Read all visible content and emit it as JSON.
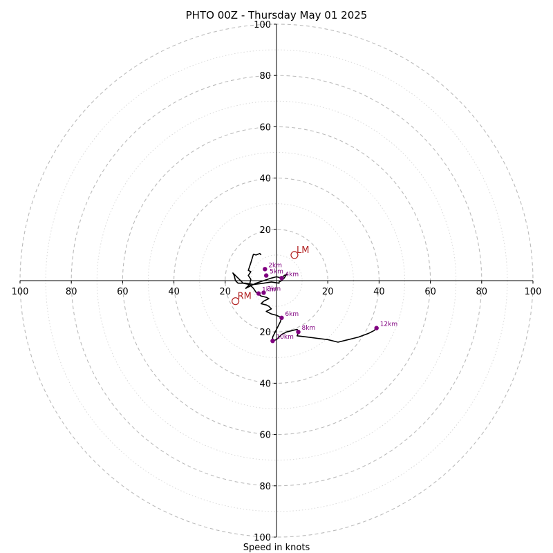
{
  "chart_data": {
    "type": "hodograph",
    "title": "PHTO 00Z - Thursday May 01 2025",
    "xlabel": "Speed in knots",
    "range": 100,
    "ring_major_step": 20,
    "ring_minor_step": 10,
    "tick_values": [
      20,
      40,
      60,
      80,
      100
    ],
    "colors": {
      "trace": "#000000",
      "height_marker": "#800080",
      "motion": "#b22222",
      "major_ring": "#bbbbbb",
      "minor_ring": "#d8d8d8"
    },
    "trace": [
      [
        -6,
        10
      ],
      [
        -6,
        10
      ],
      [
        -6.5,
        10.6
      ],
      [
        -8,
        10
      ],
      [
        -9,
        10.3
      ],
      [
        -10,
        7
      ],
      [
        -11,
        4
      ],
      [
        -10,
        3.5
      ],
      [
        -11,
        2
      ],
      [
        -10,
        0.5
      ],
      [
        -10.5,
        -1.5
      ],
      [
        -12,
        -3
      ],
      [
        -10,
        -2
      ],
      [
        -8,
        -1
      ],
      [
        -5,
        0
      ],
      [
        -2,
        1
      ],
      [
        0,
        1.5
      ],
      [
        2,
        1
      ],
      [
        3,
        2
      ],
      [
        4,
        2.5
      ],
      [
        3,
        1
      ],
      [
        2,
        0
      ],
      [
        1,
        -0.5
      ],
      [
        1,
        -1
      ],
      [
        -2,
        -0.5
      ],
      [
        -5,
        -1
      ],
      [
        -9,
        -1.5
      ],
      [
        -12,
        -1
      ],
      [
        -15,
        -1
      ],
      [
        -16,
        0
      ],
      [
        -16.5,
        2
      ],
      [
        -17,
        3
      ],
      [
        -15,
        1
      ],
      [
        -13,
        -1
      ],
      [
        -10.5,
        -1.5
      ],
      [
        -9,
        -3
      ],
      [
        -8,
        -4.5
      ],
      [
        -6,
        -6
      ],
      [
        -4,
        -6.5
      ],
      [
        -3,
        -7
      ],
      [
        -5,
        -8
      ],
      [
        -5.5,
        -8.5
      ],
      [
        -6,
        -9
      ],
      [
        -4,
        -9.5
      ],
      [
        -3,
        -10
      ],
      [
        -2,
        -11
      ],
      [
        -4,
        -12
      ],
      [
        -2,
        -13
      ],
      [
        0,
        -13.5
      ],
      [
        1,
        -14
      ],
      [
        2,
        -14.5
      ],
      [
        1.5,
        -16
      ],
      [
        1,
        -17
      ],
      [
        0.5,
        -18
      ],
      [
        0,
        -19
      ],
      [
        -1,
        -21
      ],
      [
        -1.5,
        -22
      ],
      [
        -1.5,
        -23.5
      ],
      [
        0,
        -23
      ],
      [
        2,
        -21
      ],
      [
        4,
        -20
      ],
      [
        6,
        -19.5
      ],
      [
        8,
        -19
      ],
      [
        8.5,
        -19.5
      ],
      [
        8.5,
        -20.5
      ],
      [
        8,
        -21.5
      ],
      [
        12,
        -22
      ],
      [
        16,
        -22.5
      ],
      [
        20,
        -23
      ],
      [
        24,
        -24
      ],
      [
        28,
        -23
      ],
      [
        32,
        -22
      ],
      [
        36,
        -20.5
      ],
      [
        38,
        -19.5
      ],
      [
        39,
        -18.5
      ]
    ],
    "height_markers": [
      {
        "label": "1km",
        "u": -7,
        "v": -5
      },
      {
        "label": "2km",
        "u": -4.5,
        "v": 4.5
      },
      {
        "label": "3km",
        "u": -5,
        "v": -4.7
      },
      {
        "label": "4km",
        "u": 2,
        "v": 1
      },
      {
        "label": "5km",
        "u": -4,
        "v": 2
      },
      {
        "label": "6km",
        "u": 2,
        "v": -14.5
      },
      {
        "label": "8km",
        "u": 8.5,
        "v": -20
      },
      {
        "label": "10km",
        "u": -1.5,
        "v": -23.5
      },
      {
        "label": "12km",
        "u": 39,
        "v": -18.5
      }
    ],
    "storm_motion": [
      {
        "label": "LM",
        "u": 7,
        "v": 10
      },
      {
        "label": "RM",
        "u": -16,
        "v": -8
      }
    ]
  }
}
